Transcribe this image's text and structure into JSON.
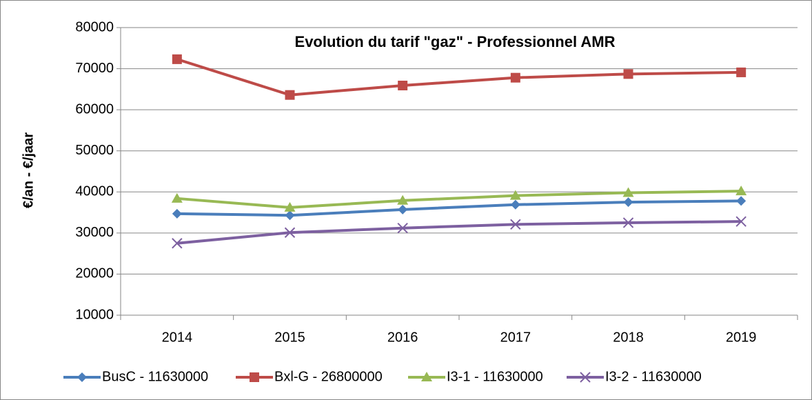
{
  "chart_data": {
    "type": "line",
    "title": "Evolution du tarif \"gaz\" - Professionnel AMR",
    "y_label": "€/an - €/jaar",
    "categories": [
      "2014",
      "2015",
      "2016",
      "2017",
      "2018",
      "2019"
    ],
    "series": [
      {
        "name": "BusC - 11630000",
        "color": "#4a7ebb",
        "marker": "diamond",
        "values": [
          34700,
          34300,
          35700,
          36900,
          37500,
          37800
        ]
      },
      {
        "name": "Bxl-G - 26800000",
        "color": "#be4b48",
        "marker": "square",
        "values": [
          72300,
          63600,
          65900,
          67800,
          68700,
          69100
        ]
      },
      {
        "name": "I3-1 - 11630000",
        "color": "#98b954",
        "marker": "triangle",
        "values": [
          38400,
          36200,
          37900,
          39100,
          39800,
          40200
        ]
      },
      {
        "name": "I3-2 - 11630000",
        "color": "#7d60a0",
        "marker": "x",
        "values": [
          27500,
          30100,
          31200,
          32100,
          32500,
          32800
        ]
      }
    ],
    "ylim": [
      10000,
      80000
    ],
    "yticks": [
      10000,
      20000,
      30000,
      40000,
      50000,
      60000,
      70000,
      80000
    ],
    "grid": true,
    "legend": "bottom"
  }
}
